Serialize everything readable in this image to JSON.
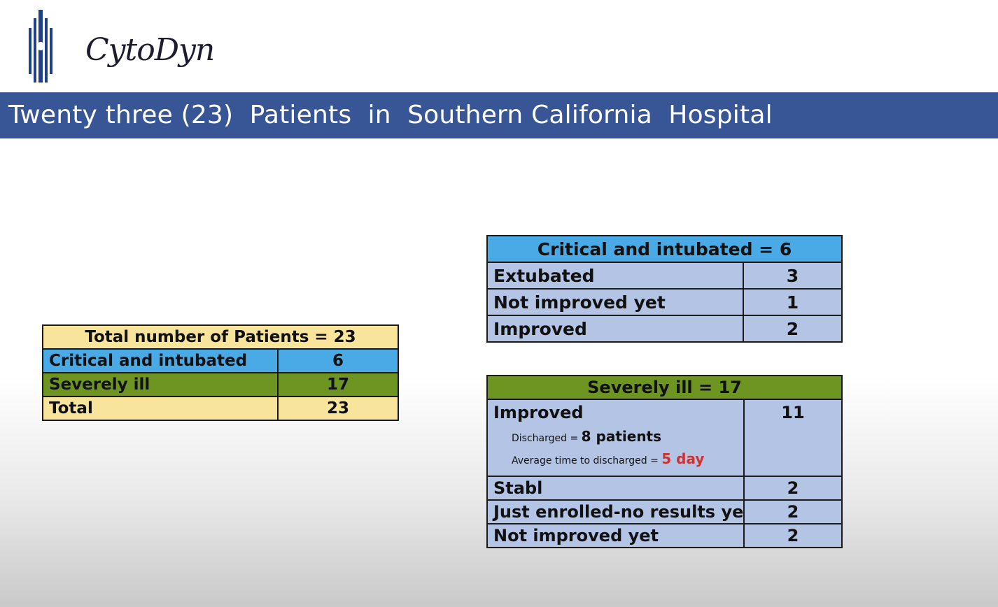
{
  "logo": {
    "text": "CytoDyn"
  },
  "banner": {
    "title": "Twenty three (23)  Patients  in  Southern California  Hospital"
  },
  "summary_table": {
    "header": "Total number of Patients = 23",
    "rows": [
      {
        "label": "Critical and intubated",
        "value": "6"
      },
      {
        "label": "Severely ill",
        "value": "17"
      },
      {
        "label": "Total",
        "value": "23"
      }
    ]
  },
  "critical_table": {
    "header": "Critical and intubated = 6",
    "rows": [
      {
        "label": "Extubated",
        "value": "3"
      },
      {
        "label": "Not improved yet",
        "value": "1"
      },
      {
        "label": "Improved",
        "value": "2"
      }
    ]
  },
  "severe_table": {
    "header": "Severely ill = 17",
    "improved": {
      "label": "Improved",
      "value": "11",
      "discharged_label": "Discharged = ",
      "discharged_value": "8 patients",
      "avg_label": "Average time to discharged = ",
      "avg_value": "5 day"
    },
    "rows": [
      {
        "label": "Stabl",
        "value": "2"
      },
      {
        "label": "Just enrolled-no results yet",
        "value": "2"
      },
      {
        "label": "Not improved yet",
        "value": "2"
      }
    ]
  },
  "colors": {
    "banner": "#385696",
    "yellow": "#f9e49b",
    "blue": "#4aaae6",
    "green": "#6e9421",
    "lavender": "#b4c4e4",
    "highlight_red": "#d0312d"
  }
}
